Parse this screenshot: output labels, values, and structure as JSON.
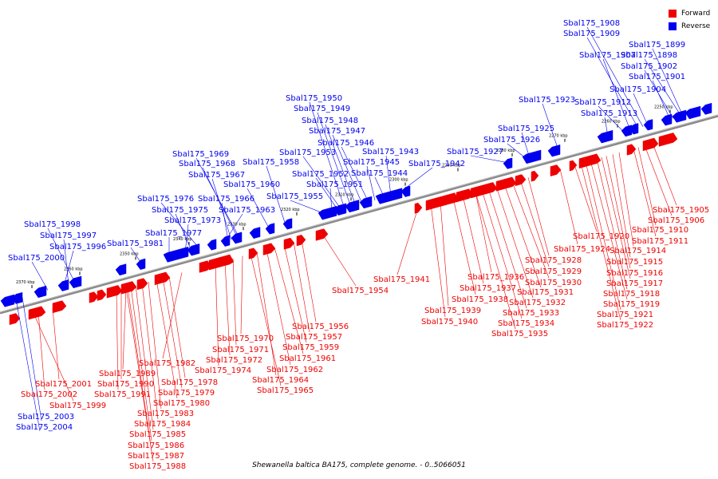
{
  "caption": "Shewanella baltica BA175, complete genome. - 0..5066051",
  "legend": {
    "forward": {
      "label": "Forward",
      "color": "#ee0000"
    },
    "reverse": {
      "label": "Reverse",
      "color": "#0000ee"
    }
  },
  "axis_ticks": [
    "2370 kbp",
    "2360 kbp",
    "2350 kbp",
    "2340 kbp",
    "2330 kbp",
    "2320 kbp",
    "2310 kbp",
    "2300 kbp",
    "2290 kbp",
    "2280 kbp",
    "2270 kbp",
    "2260 kbp",
    "2250 kbp"
  ],
  "reverse_labels": [
    "Sbal175_1908",
    "Sbal175_1909",
    "Sbal175_1907",
    "Sbal175_1899",
    "Sbal175_1898",
    "Sbal175_1902",
    "Sbal175_1901",
    "Sbal175_1904",
    "Sbal175_1923",
    "Sbal175_1912",
    "Sbal175_1913",
    "Sbal175_1925",
    "Sbal175_1926",
    "Sbal175_1927",
    "Sbal175_1942",
    "Sbal175_1943",
    "Sbal175_1944",
    "Sbal175_1945",
    "Sbal175_1946",
    "Sbal175_1947",
    "Sbal175_1948",
    "Sbal175_1949",
    "Sbal175_1950",
    "Sbal175_1953",
    "Sbal175_1952",
    "Sbal175_1951",
    "Sbal175_1955",
    "Sbal175_1958",
    "Sbal175_1960",
    "Sbal175_1969",
    "Sbal175_1968",
    "Sbal175_1967",
    "Sbal175_1966",
    "Sbal175_1963",
    "Sbal175_1976",
    "Sbal175_1975",
    "Sbal175_1973",
    "Sbal175_1977",
    "Sbal175_1981",
    "Sbal175_1998",
    "Sbal175_1997",
    "Sbal175_1996",
    "Sbal175_2000",
    "Sbal175_2003",
    "Sbal175_2004"
  ],
  "forward_labels": [
    "Sbal175_1905",
    "Sbal175_1906",
    "Sbal175_1910",
    "Sbal175_1911",
    "Sbal175_1920",
    "Sbal175_1924",
    "Sbal175_1914",
    "Sbal175_1915",
    "Sbal175_1916",
    "Sbal175_1917",
    "Sbal175_1918",
    "Sbal175_1919",
    "Sbal175_1921",
    "Sbal175_1922",
    "Sbal175_1928",
    "Sbal175_1929",
    "Sbal175_1930",
    "Sbal175_1931",
    "Sbal175_1932",
    "Sbal175_1933",
    "Sbal175_1934",
    "Sbal175_1935",
    "Sbal175_1936",
    "Sbal175_1937",
    "Sbal175_1938",
    "Sbal175_1939",
    "Sbal175_1940",
    "Sbal175_1941",
    "Sbal175_1954",
    "Sbal175_1956",
    "Sbal175_1957",
    "Sbal175_1959",
    "Sbal175_1961",
    "Sbal175_1962",
    "Sbal175_1964",
    "Sbal175_1965",
    "Sbal175_1970",
    "Sbal175_1971",
    "Sbal175_1972",
    "Sbal175_1974",
    "Sbal175_1982",
    "Sbal175_1989",
    "Sbal175_1990",
    "Sbal175_1991",
    "Sbal175_1978",
    "Sbal175_1979",
    "Sbal175_1980",
    "Sbal175_1983",
    "Sbal175_1984",
    "Sbal175_1985",
    "Sbal175_1986",
    "Sbal175_1987",
    "Sbal175_1988",
    "Sbal175_2001",
    "Sbal175_2002",
    "Sbal175_1999"
  ]
}
